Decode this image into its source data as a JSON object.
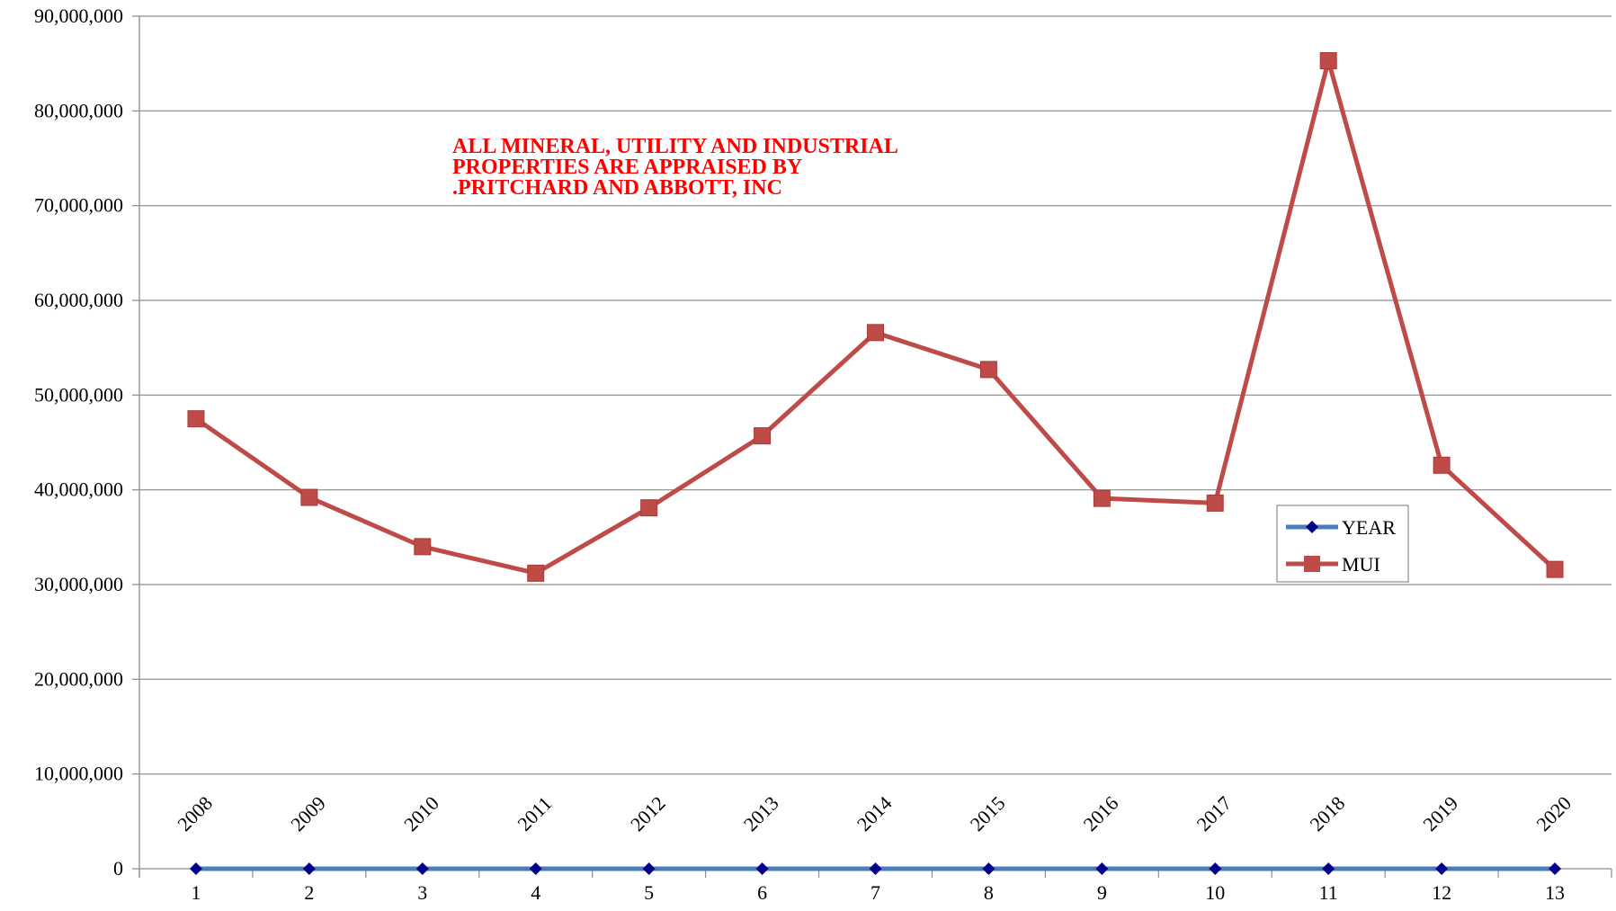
{
  "chart_data": {
    "type": "line",
    "title": "",
    "xlabel": "",
    "ylabel": "",
    "categories": [
      1,
      2,
      3,
      4,
      5,
      6,
      7,
      8,
      9,
      10,
      11,
      12,
      13
    ],
    "year_labels": [
      "2008",
      "2009",
      "2010",
      "2011",
      "2012",
      "2013",
      "2014",
      "2015",
      "2016",
      "2017",
      "2018",
      "2019",
      "2020"
    ],
    "ylim": [
      0,
      90000000
    ],
    "yticks": [
      0,
      10000000,
      20000000,
      30000000,
      40000000,
      50000000,
      60000000,
      70000000,
      80000000,
      90000000
    ],
    "ytick_labels": [
      "0",
      "10,000,000",
      "20,000,000",
      "30,000,000",
      "40,000,000",
      "50,000,000",
      "60,000,000",
      "70,000,000",
      "80,000,000",
      "90,000,000"
    ],
    "grid": "horizontal",
    "legend_position": "right",
    "series": [
      {
        "name": "YEAR",
        "color": "#4a7ebb",
        "marker_color": "#00008b",
        "marker": "diamond",
        "values": [
          2008,
          2009,
          2010,
          2011,
          2012,
          2013,
          2014,
          2015,
          2016,
          2017,
          2018,
          2019,
          2020
        ]
      },
      {
        "name": "MUI",
        "color": "#be4b48",
        "marker_color": "#be4b48",
        "marker": "square",
        "values": [
          47500000,
          39200000,
          34000000,
          31200000,
          38100000,
          45700000,
          56600000,
          52700000,
          39100000,
          38600000,
          85300000,
          42600000,
          31600000
        ]
      }
    ],
    "annotation": {
      "lines": [
        "ALL MINERAL, UTILITY AND INDUSTRIAL",
        "PROPERTIES ARE APPRAISED BY",
        ".PRITCHARD AND ABBOTT, INC"
      ],
      "color": "#ff0000"
    }
  }
}
